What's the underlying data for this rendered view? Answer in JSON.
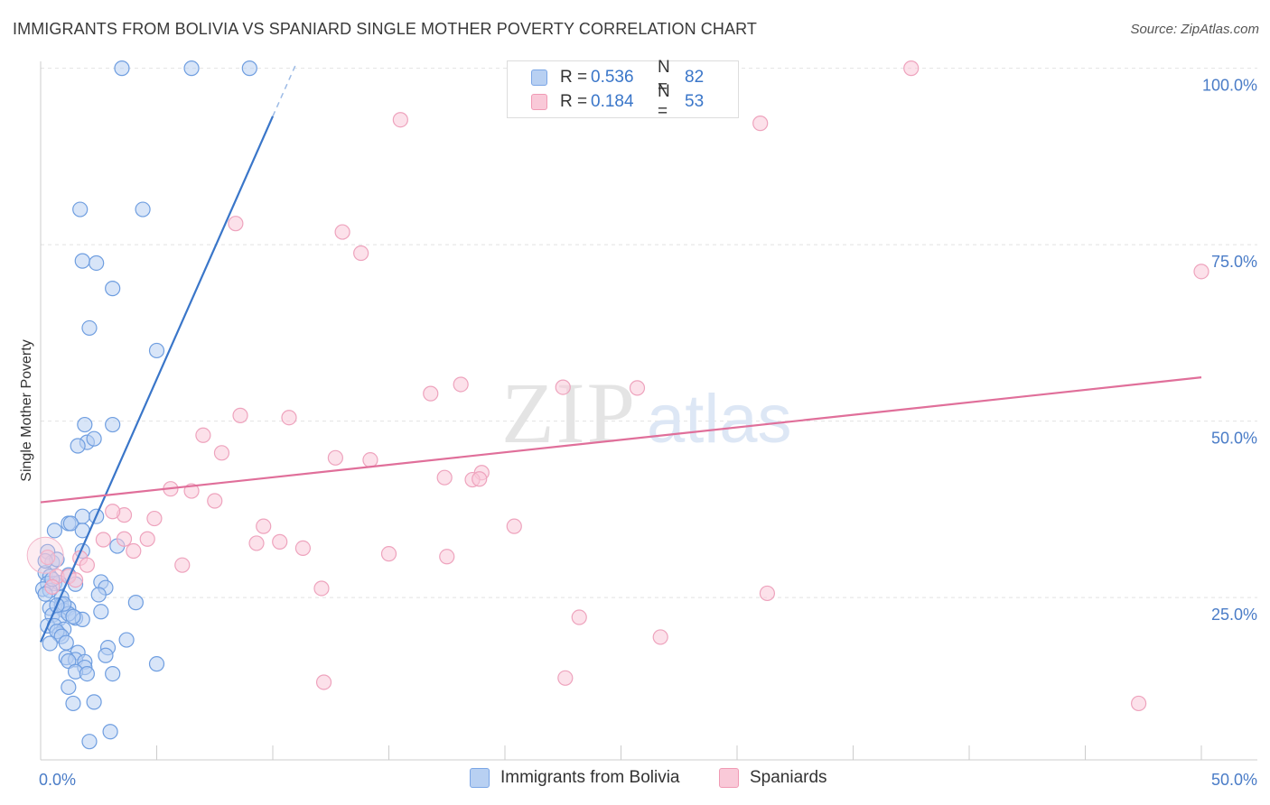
{
  "header": {
    "title": "IMMIGRANTS FROM BOLIVIA VS SPANIARD SINGLE MOTHER POVERTY CORRELATION CHART",
    "source": "Source: ZipAtlas.com"
  },
  "watermark": {
    "zip": "ZIP",
    "atlas": "atlas"
  },
  "legend": {
    "rows": [
      {
        "r_label": "R =",
        "r_value": "0.536",
        "n_label": "N =",
        "n_value": "82"
      },
      {
        "r_label": "R =",
        "r_value": "0.184",
        "n_label": "N =",
        "n_value": "53"
      }
    ]
  },
  "chart_data": {
    "type": "scatter",
    "title": "IMMIGRANTS FROM BOLIVIA VS SPANIARD SINGLE MOTHER POVERTY CORRELATION CHART",
    "xlabel": "",
    "ylabel": "Single Mother Poverty",
    "xlim": [
      0,
      50
    ],
    "ylim": [
      2,
      102
    ],
    "x_tick_labels": [
      "0.0%",
      "50.0%"
    ],
    "y_tick_labels": [
      "25.0%",
      "50.0%",
      "75.0%",
      "100.0%"
    ],
    "y_ticks": [
      25,
      50,
      75,
      100
    ],
    "colors": {
      "blue": "#3a76c9",
      "blue_fill": "#b8d0f2",
      "pink": "#e06f9a",
      "pink_fill": "#f9c9d8"
    },
    "series": [
      {
        "name": "Immigrants from Bolivia",
        "trend": {
          "x0": 0,
          "y0": 18.7,
          "x1": 10,
          "y1": 93.2,
          "dash_x1": 11,
          "dash_y1": 100.6
        },
        "points": [
          [
            3.5,
            100
          ],
          [
            6.5,
            100
          ],
          [
            9,
            100
          ],
          [
            1.7,
            80
          ],
          [
            4.4,
            80
          ],
          [
            1.8,
            72.7
          ],
          [
            2.4,
            72.4
          ],
          [
            3.1,
            68.8
          ],
          [
            2.1,
            63.2
          ],
          [
            5,
            60
          ],
          [
            1.9,
            49.5
          ],
          [
            3.1,
            49.5
          ],
          [
            2,
            47
          ],
          [
            2.3,
            47.5
          ],
          [
            1.6,
            46.5
          ],
          [
            0.6,
            34.5
          ],
          [
            1.2,
            35.5
          ],
          [
            1.8,
            36.5
          ],
          [
            2.4,
            36.5
          ],
          [
            1.3,
            35.5
          ],
          [
            1.8,
            34.5
          ],
          [
            1.8,
            31.6
          ],
          [
            3.3,
            32.3
          ],
          [
            0.3,
            31.5
          ],
          [
            0.5,
            30
          ],
          [
            0.7,
            30.4
          ],
          [
            0.2,
            28.5
          ],
          [
            0.4,
            28
          ],
          [
            0.6,
            27
          ],
          [
            1.2,
            28.2
          ],
          [
            0.3,
            27
          ],
          [
            0.8,
            27.1
          ],
          [
            1.5,
            26.9
          ],
          [
            2.6,
            27.2
          ],
          [
            0.1,
            26.2
          ],
          [
            0.4,
            26
          ],
          [
            2.8,
            26.4
          ],
          [
            0.2,
            25.5
          ],
          [
            0.9,
            25
          ],
          [
            2.5,
            25.4
          ],
          [
            4.1,
            24.3
          ],
          [
            0.4,
            23.5
          ],
          [
            0.9,
            24
          ],
          [
            1,
            23.2
          ],
          [
            1.2,
            23.5
          ],
          [
            2.6,
            23
          ],
          [
            0.5,
            22.5
          ],
          [
            0.8,
            22
          ],
          [
            1.5,
            22.1
          ],
          [
            1.8,
            21.9
          ],
          [
            0.3,
            21
          ],
          [
            0.6,
            21
          ],
          [
            1.2,
            22.7
          ],
          [
            1.4,
            22.3
          ],
          [
            1,
            20.5
          ],
          [
            0.8,
            19.8
          ],
          [
            0.7,
            20.2
          ],
          [
            0.9,
            19.5
          ],
          [
            1.1,
            18.6
          ],
          [
            3.7,
            19
          ],
          [
            1.6,
            17.2
          ],
          [
            2.9,
            17.9
          ],
          [
            2.8,
            16.8
          ],
          [
            1.1,
            16.5
          ],
          [
            1.5,
            16.2
          ],
          [
            1.9,
            15.9
          ],
          [
            1.2,
            16
          ],
          [
            1.9,
            15.1
          ],
          [
            5,
            15.6
          ],
          [
            1.5,
            14.5
          ],
          [
            2,
            14.2
          ],
          [
            3.1,
            14.2
          ],
          [
            1.2,
            12.3
          ],
          [
            1.4,
            10
          ],
          [
            2.3,
            10.2
          ],
          [
            3,
            6
          ],
          [
            2.1,
            4.6
          ],
          [
            0.2,
            30.2
          ],
          [
            0.5,
            27.6
          ],
          [
            1,
            24.1
          ],
          [
            0.7,
            23.9
          ],
          [
            0.4,
            18.5
          ]
        ]
      },
      {
        "name": "Spaniards",
        "trend": {
          "x0": 0,
          "y0": 38.5,
          "x1": 50,
          "y1": 56.2
        },
        "points": [
          [
            37.5,
            100
          ],
          [
            15.5,
            92.7
          ],
          [
            31,
            92.2
          ],
          [
            8.4,
            78
          ],
          [
            13,
            76.8
          ],
          [
            13.8,
            73.8
          ],
          [
            50,
            71.2
          ],
          [
            18.1,
            55.2
          ],
          [
            16.8,
            53.9
          ],
          [
            22.5,
            54.8
          ],
          [
            25.7,
            54.7
          ],
          [
            8.6,
            50.8
          ],
          [
            10.7,
            50.5
          ],
          [
            7,
            48
          ],
          [
            7.8,
            45.5
          ],
          [
            12.7,
            44.8
          ],
          [
            14.2,
            44.5
          ],
          [
            19,
            42.7
          ],
          [
            17.4,
            42
          ],
          [
            18.6,
            41.7
          ],
          [
            18.9,
            41.8
          ],
          [
            5.6,
            40.4
          ],
          [
            6.5,
            40.1
          ],
          [
            7.5,
            38.7
          ],
          [
            3.6,
            36.7
          ],
          [
            3.1,
            37.2
          ],
          [
            4.9,
            36.2
          ],
          [
            9.6,
            35.1
          ],
          [
            20.4,
            35.1
          ],
          [
            3.6,
            33.3
          ],
          [
            2.7,
            33.2
          ],
          [
            4.6,
            33.3
          ],
          [
            9.3,
            32.7
          ],
          [
            10.3,
            32.9
          ],
          [
            11.3,
            32
          ],
          [
            4,
            31.6
          ],
          [
            15,
            31.2
          ],
          [
            17.5,
            30.8
          ],
          [
            1.7,
            30.6
          ],
          [
            6.1,
            29.6
          ],
          [
            0.3,
            30.7
          ],
          [
            2,
            29.6
          ],
          [
            0.7,
            28
          ],
          [
            1.2,
            28
          ],
          [
            0.5,
            26.5
          ],
          [
            1.5,
            27.5
          ],
          [
            12.1,
            26.3
          ],
          [
            31.3,
            25.6
          ],
          [
            23.2,
            22.2
          ],
          [
            26.7,
            19.4
          ],
          [
            12.2,
            13
          ],
          [
            22.6,
            13.6
          ],
          [
            47.3,
            10
          ]
        ]
      }
    ]
  }
}
